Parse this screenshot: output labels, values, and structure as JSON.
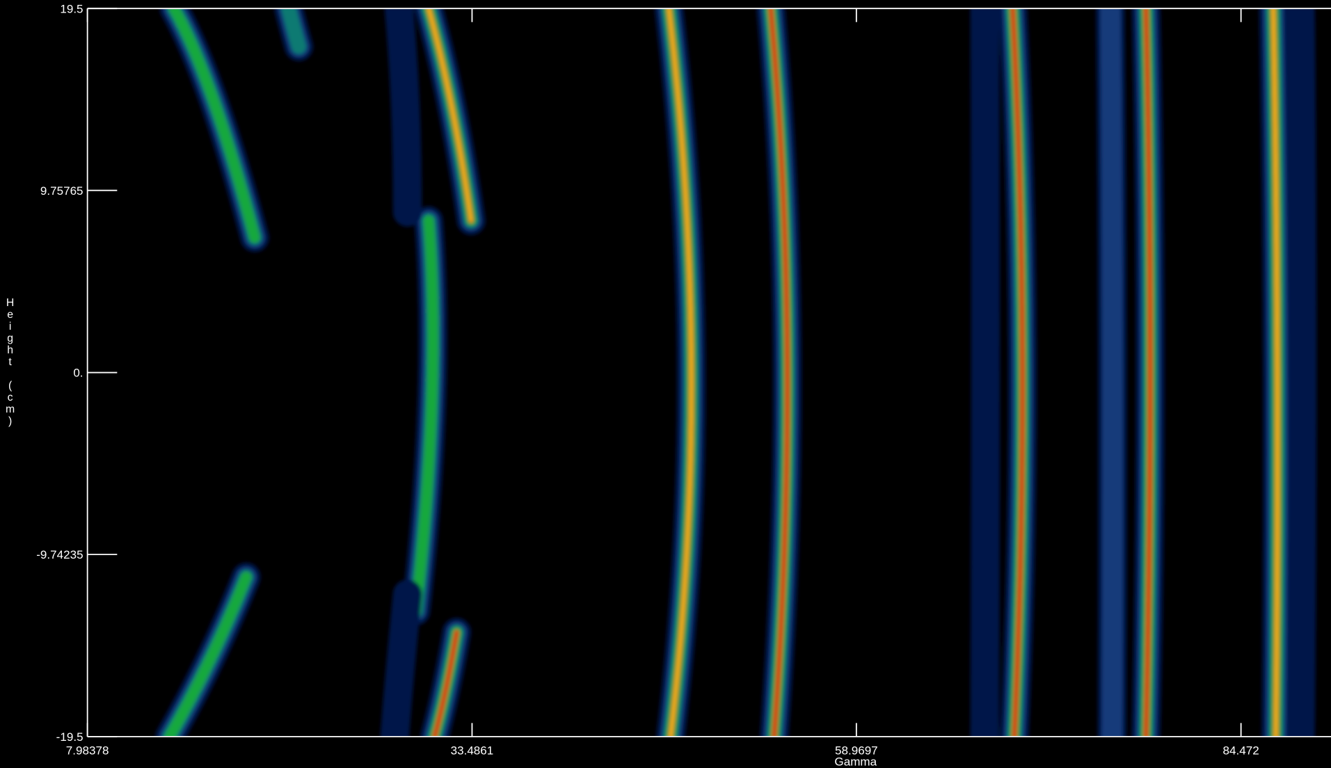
{
  "chart_data": {
    "type": "heatmap",
    "x_label": "Gamma",
    "y_label": "Height (cm)",
    "xlim": [
      7.98378,
      90.44
    ],
    "ylim": [
      -19.5,
      19.5
    ],
    "xticks": [
      7.98378,
      33.4861,
      58.9697,
      84.472
    ],
    "yticks": [
      19.5,
      9.75765,
      {
        "value": 0,
        "label": "0."
      },
      -9.74235,
      -19.5
    ]
  }
}
